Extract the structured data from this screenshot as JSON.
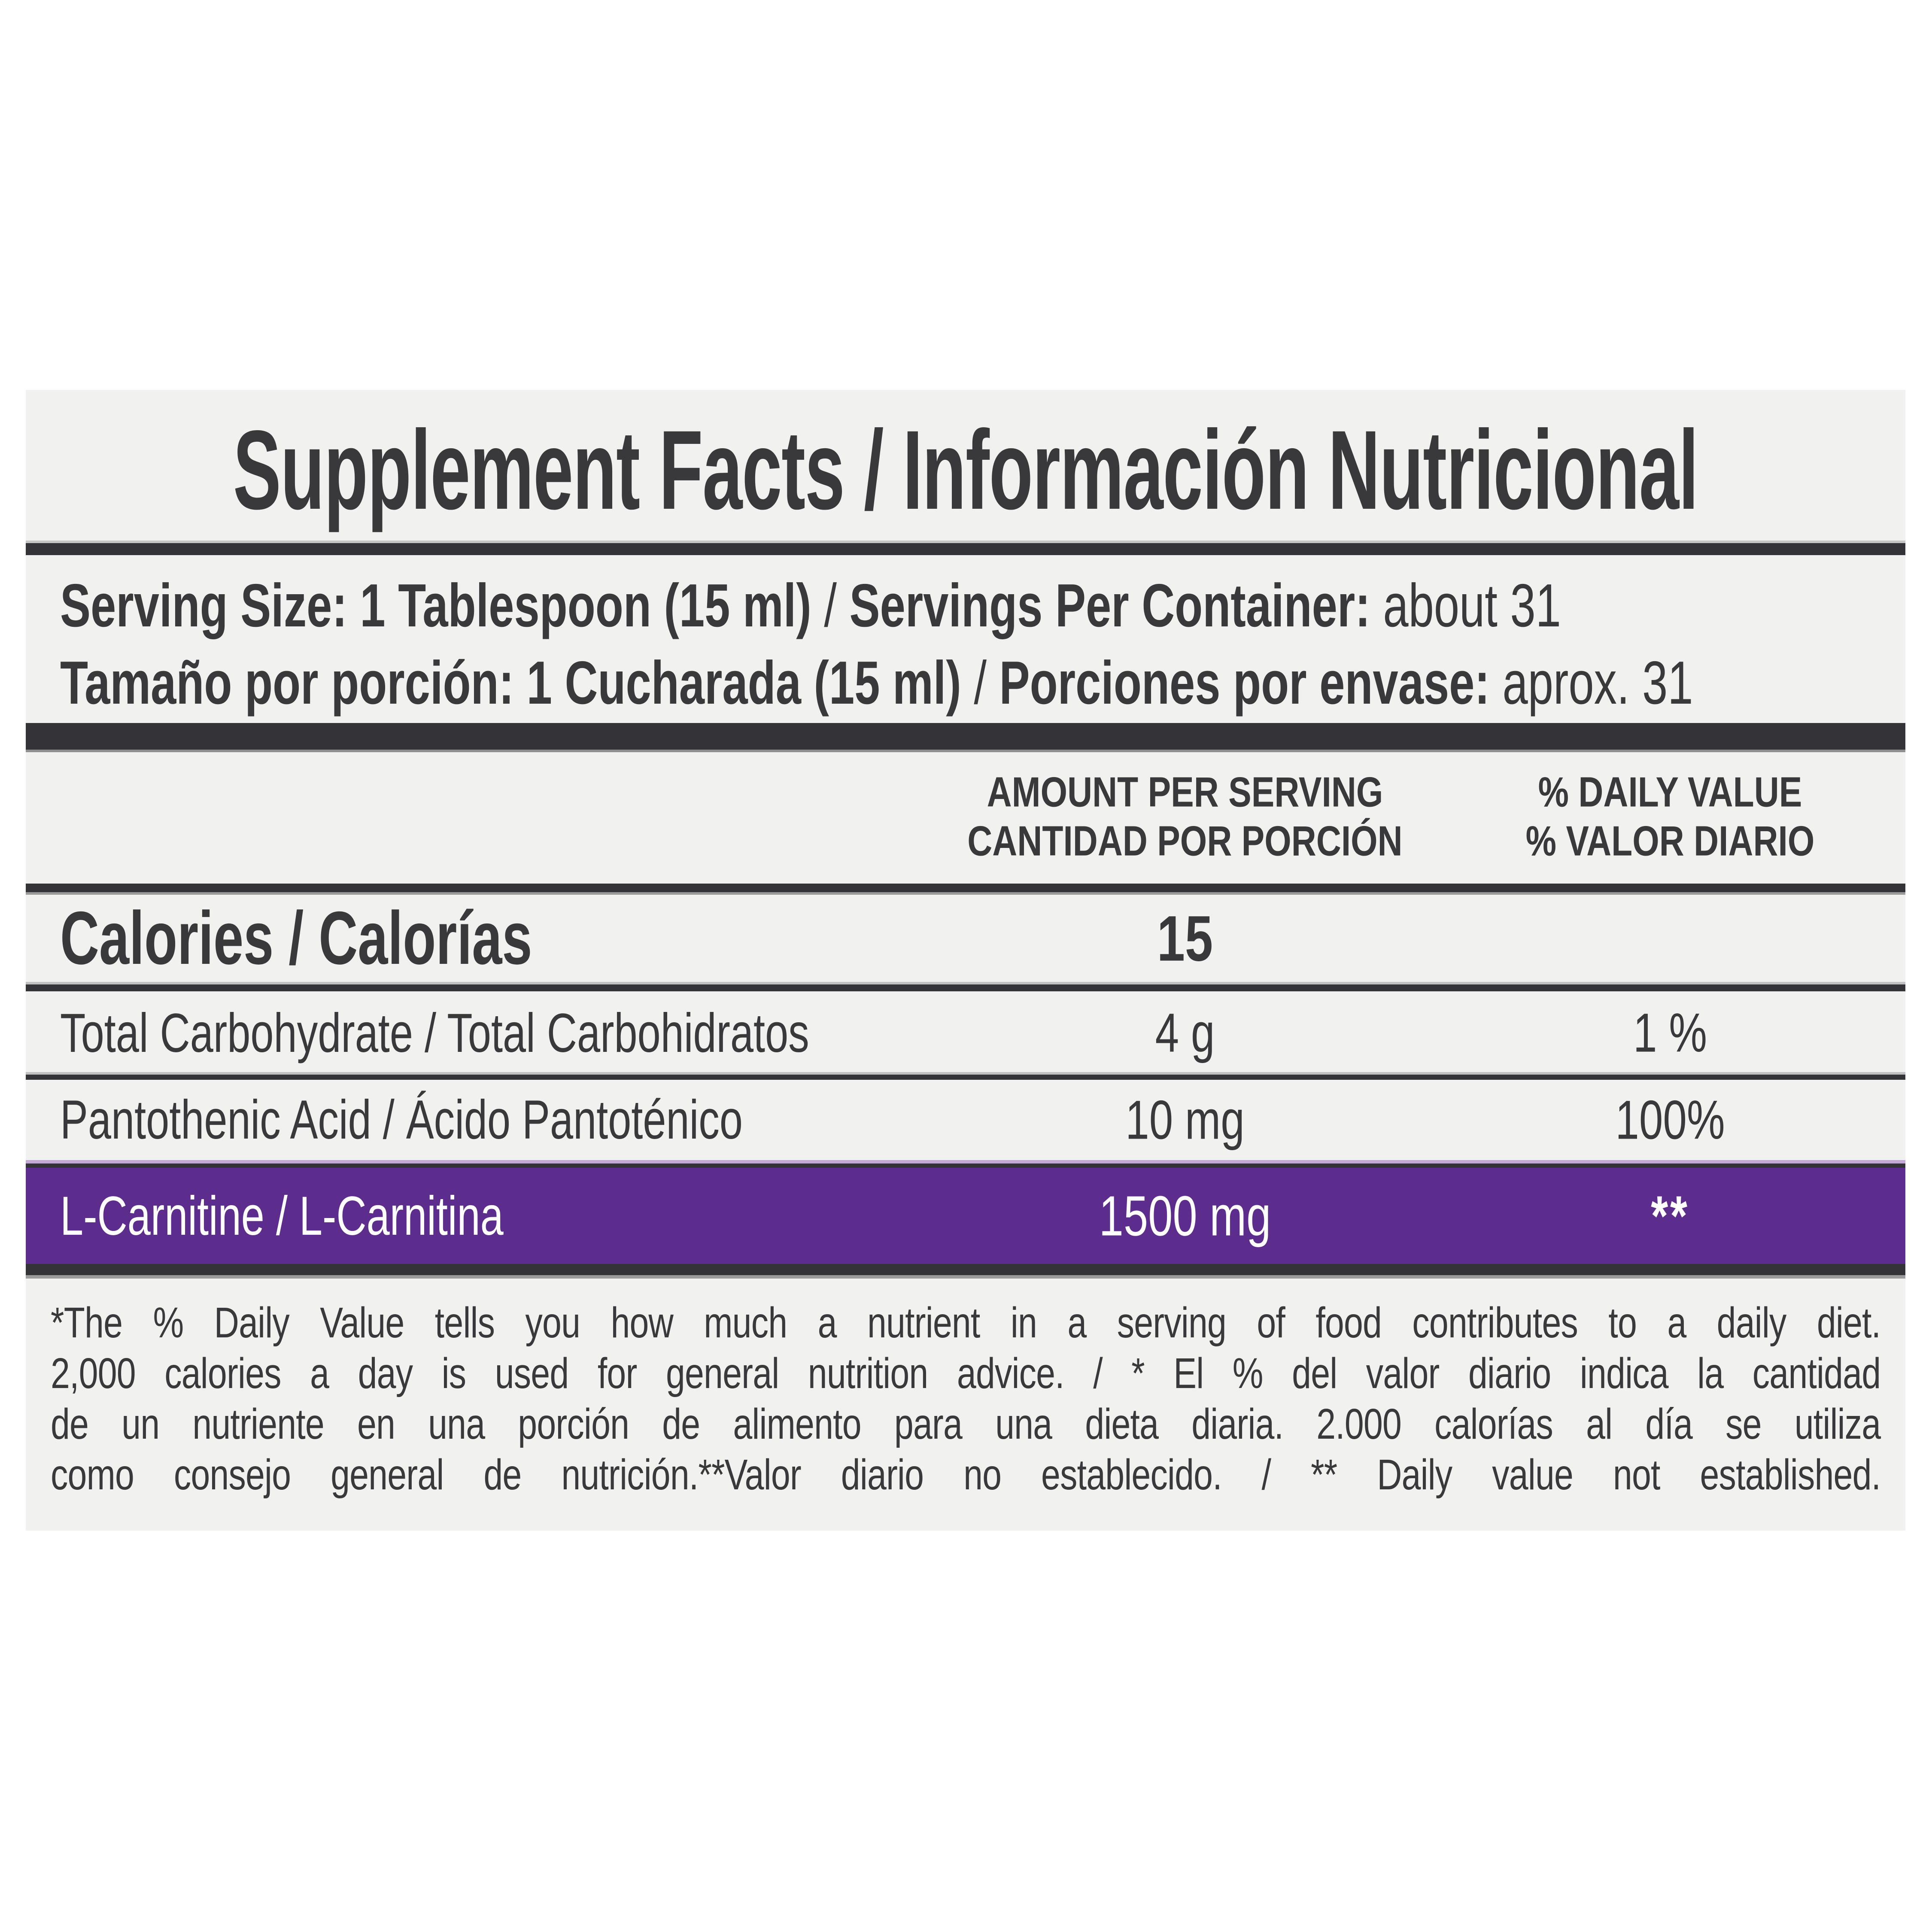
{
  "colors": {
    "page_bg": "#ffffff",
    "label_bg": "#f1f1ef",
    "bar": "#343337",
    "text": "#39383b",
    "purple_row": "#5c2d8c",
    "purple_highlight": "#c4a8d8",
    "text_on_purple": "#ffffff",
    "bottom_shadow": "#9b9b9b"
  },
  "title": "Supplement Facts / Información Nutricional",
  "serving": {
    "en": {
      "bold1": "Serving Size: 1 Tablespoon (15 ml)",
      "sep": " / ",
      "bold2": "Servings Per Container:",
      "rest": " about 31"
    },
    "es": {
      "bold1": "Tamaño por porción: 1 Cucharada (15 ml)",
      "sep": " / ",
      "bold2": "Porciones por envase:",
      "rest": " aprox. 31"
    }
  },
  "columns": {
    "amount": {
      "line1": "AMOUNT PER SERVING",
      "line2": "CANTIDAD POR PORCIÓN"
    },
    "daily_value": {
      "line1": "% DAILY VALUE",
      "line2": "% VALOR DIARIO"
    }
  },
  "rows": [
    {
      "name": "Calories / Calorías",
      "amount": "15",
      "daily_value": ""
    },
    {
      "name": "Total Carbohydrate / Total Carbohidratos",
      "amount": "4 g",
      "daily_value": "1 %"
    },
    {
      "name": "Pantothenic Acid / Ácido Pantoténico",
      "amount": "10 mg",
      "daily_value": "100%"
    },
    {
      "name": "L-Carnitine / L-Carnitina",
      "amount": "1500 mg",
      "daily_value": "**"
    }
  ],
  "footnote_lines": [
    "*The % Daily Value tells you how much a nutrient in a serving of food contributes to a daily diet.",
    "2,000 calories a day is used for general nutrition advice. / * El % del valor diario indica la cantidad",
    "de un nutriente en una porción de alimento para una dieta diaria. 2.000 calorías al día se utiliza",
    "como consejo general de nutrición.**Valor diario no establecido. / ** Daily value not established."
  ]
}
